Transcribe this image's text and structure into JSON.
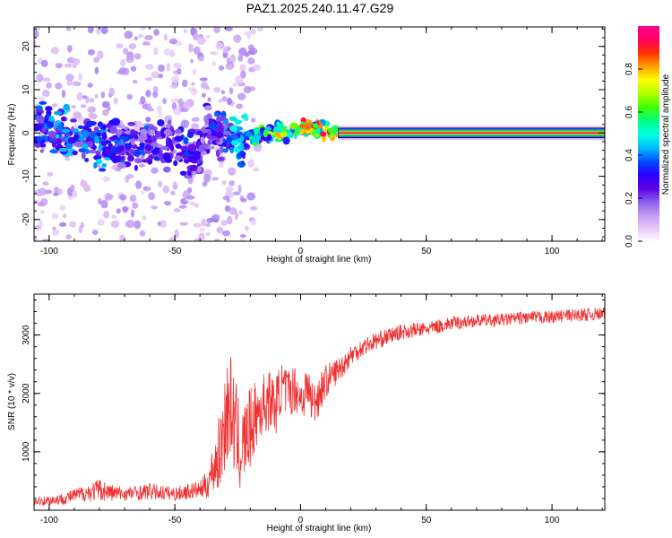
{
  "figure_title": "PAZ1.2025.240.11.47.G29",
  "chart_data": [
    {
      "type": "heatmap",
      "title": "PAZ1.2025.240.11.47.G29",
      "xlabel": "Height of straight line (km)",
      "ylabel": "Frequency (Hz)",
      "xlim": [
        -106,
        121
      ],
      "ylim": [
        -25,
        24.5
      ],
      "xticks": [
        -100,
        -50,
        0,
        50,
        100
      ],
      "xtick_labels": [
        "-100",
        "-50",
        "0",
        "50",
        "100"
      ],
      "yticks": [
        -20,
        -10,
        0,
        10,
        20
      ],
      "ytick_labels": [
        "-20",
        "-10",
        "0",
        "10",
        "20"
      ],
      "grid": false,
      "colorbar": {
        "label": "Normalized spectral amplitude",
        "range": [
          0,
          1
        ],
        "ticks": [
          0.0,
          0.2,
          0.4,
          0.6,
          0.8
        ],
        "tick_labels": [
          "0.0",
          "0.2",
          "0.4",
          "0.6",
          "0.8"
        ],
        "colors": [
          "#ffffff",
          "#e6c8f8",
          "#c39bf2",
          "#8a5cf0",
          "#5a00e6",
          "#2a00ff",
          "#0050ff",
          "#00c0ff",
          "#00ffe0",
          "#00ff80",
          "#40ff00",
          "#b0ff00",
          "#ffff00",
          "#ffa000",
          "#ff3000",
          "#ff0060",
          "#ff0090"
        ]
      },
      "ridge": [
        {
          "x": -105,
          "freq": 1.5,
          "amp": 0.35
        },
        {
          "x": -100,
          "freq": 1.0,
          "amp": 0.4
        },
        {
          "x": -95,
          "freq": 0.8,
          "amp": 0.45
        },
        {
          "x": -90,
          "freq": -1.5,
          "amp": 0.45
        },
        {
          "x": -85,
          "freq": -1.5,
          "amp": 0.4
        },
        {
          "x": -80,
          "freq": -2.5,
          "amp": 0.45
        },
        {
          "x": -75,
          "freq": -3.0,
          "amp": 0.4
        },
        {
          "x": -70,
          "freq": -2.5,
          "amp": 0.35
        },
        {
          "x": -65,
          "freq": -3.0,
          "amp": 0.35
        },
        {
          "x": -60,
          "freq": -2.0,
          "amp": 0.35
        },
        {
          "x": -55,
          "freq": -2.5,
          "amp": 0.3
        },
        {
          "x": -50,
          "freq": -2.5,
          "amp": 0.3
        },
        {
          "x": -45,
          "freq": -5.5,
          "amp": 0.35
        },
        {
          "x": -40,
          "freq": -5.0,
          "amp": 0.3
        },
        {
          "x": -38,
          "freq": 1.5,
          "amp": 0.3
        },
        {
          "x": -35,
          "freq": 1.0,
          "amp": 0.35
        },
        {
          "x": -30,
          "freq": -0.5,
          "amp": 0.4
        },
        {
          "x": -25,
          "freq": -2.0,
          "amp": 0.5
        },
        {
          "x": -20,
          "freq": -1.0,
          "amp": 0.55
        },
        {
          "x": -15,
          "freq": 0.0,
          "amp": 0.6
        },
        {
          "x": -10,
          "freq": 0.5,
          "amp": 0.7
        },
        {
          "x": -5,
          "freq": 0.0,
          "amp": 0.8
        },
        {
          "x": 0,
          "freq": 1.0,
          "amp": 0.85
        },
        {
          "x": 5,
          "freq": 1.0,
          "amp": 0.9
        },
        {
          "x": 10,
          "freq": 0.5,
          "amp": 0.9
        },
        {
          "x": 15,
          "freq": 0.0,
          "amp": 0.95
        },
        {
          "x": 50,
          "freq": 0.0,
          "amp": 0.95
        },
        {
          "x": 100,
          "freq": 0.0,
          "amp": 0.95
        },
        {
          "x": 121,
          "freq": 0.0,
          "amp": 0.95
        }
      ]
    },
    {
      "type": "line",
      "xlabel": "Height of straight line (km)",
      "ylabel": "SNR (10 * v/v)",
      "xlim": [
        -106,
        121
      ],
      "ylim": [
        0,
        3700
      ],
      "xticks": [
        -100,
        -50,
        0,
        50,
        100
      ],
      "xtick_labels": [
        "-100",
        "-50",
        "0",
        "50",
        "100"
      ],
      "yticks": [
        1000,
        2000,
        3000
      ],
      "ytick_labels": [
        "1000",
        "2000",
        "3000"
      ],
      "grid": false,
      "color": "#f03030",
      "series": [
        {
          "x": [
            -106,
            -100,
            -95,
            -90,
            -85,
            -80,
            -75,
            -70,
            -65,
            -60,
            -55,
            -50,
            -45,
            -40,
            -37,
            -35,
            -32,
            -30,
            -28,
            -26,
            -24,
            -22,
            -20,
            -18,
            -15,
            -12,
            -10,
            -8,
            -5,
            -2,
            0,
            3,
            5,
            8,
            10,
            12,
            15,
            18,
            20,
            25,
            30,
            35,
            40,
            45,
            50,
            55,
            60,
            65,
            70,
            75,
            80,
            85,
            90,
            95,
            100,
            105,
            110,
            115,
            121
          ],
          "y": [
            150,
            170,
            190,
            250,
            300,
            350,
            300,
            280,
            300,
            320,
            300,
            280,
            320,
            350,
            450,
            700,
            1000,
            1600,
            1800,
            1400,
            1000,
            1200,
            1400,
            1600,
            1800,
            1900,
            1750,
            2100,
            2000,
            2100,
            1900,
            2100,
            1800,
            2050,
            2200,
            2300,
            2400,
            2550,
            2650,
            2800,
            2900,
            2980,
            3050,
            3080,
            3100,
            3150,
            3200,
            3220,
            3250,
            3250,
            3260,
            3280,
            3300,
            3300,
            3310,
            3330,
            3340,
            3350,
            3360
          ],
          "noise": [
            80,
            90,
            100,
            120,
            150,
            200,
            150,
            120,
            130,
            140,
            130,
            120,
            140,
            150,
            250,
            400,
            700,
            900,
            900,
            900,
            700,
            700,
            700,
            600,
            550,
            500,
            500,
            450,
            450,
            400,
            400,
            400,
            400,
            350,
            300,
            250,
            220,
            200,
            180,
            160,
            150,
            140,
            130,
            130,
            120,
            120,
            120,
            110,
            110,
            110,
            110,
            110,
            110,
            110,
            110,
            110,
            110,
            110,
            110
          ]
        }
      ]
    }
  ]
}
